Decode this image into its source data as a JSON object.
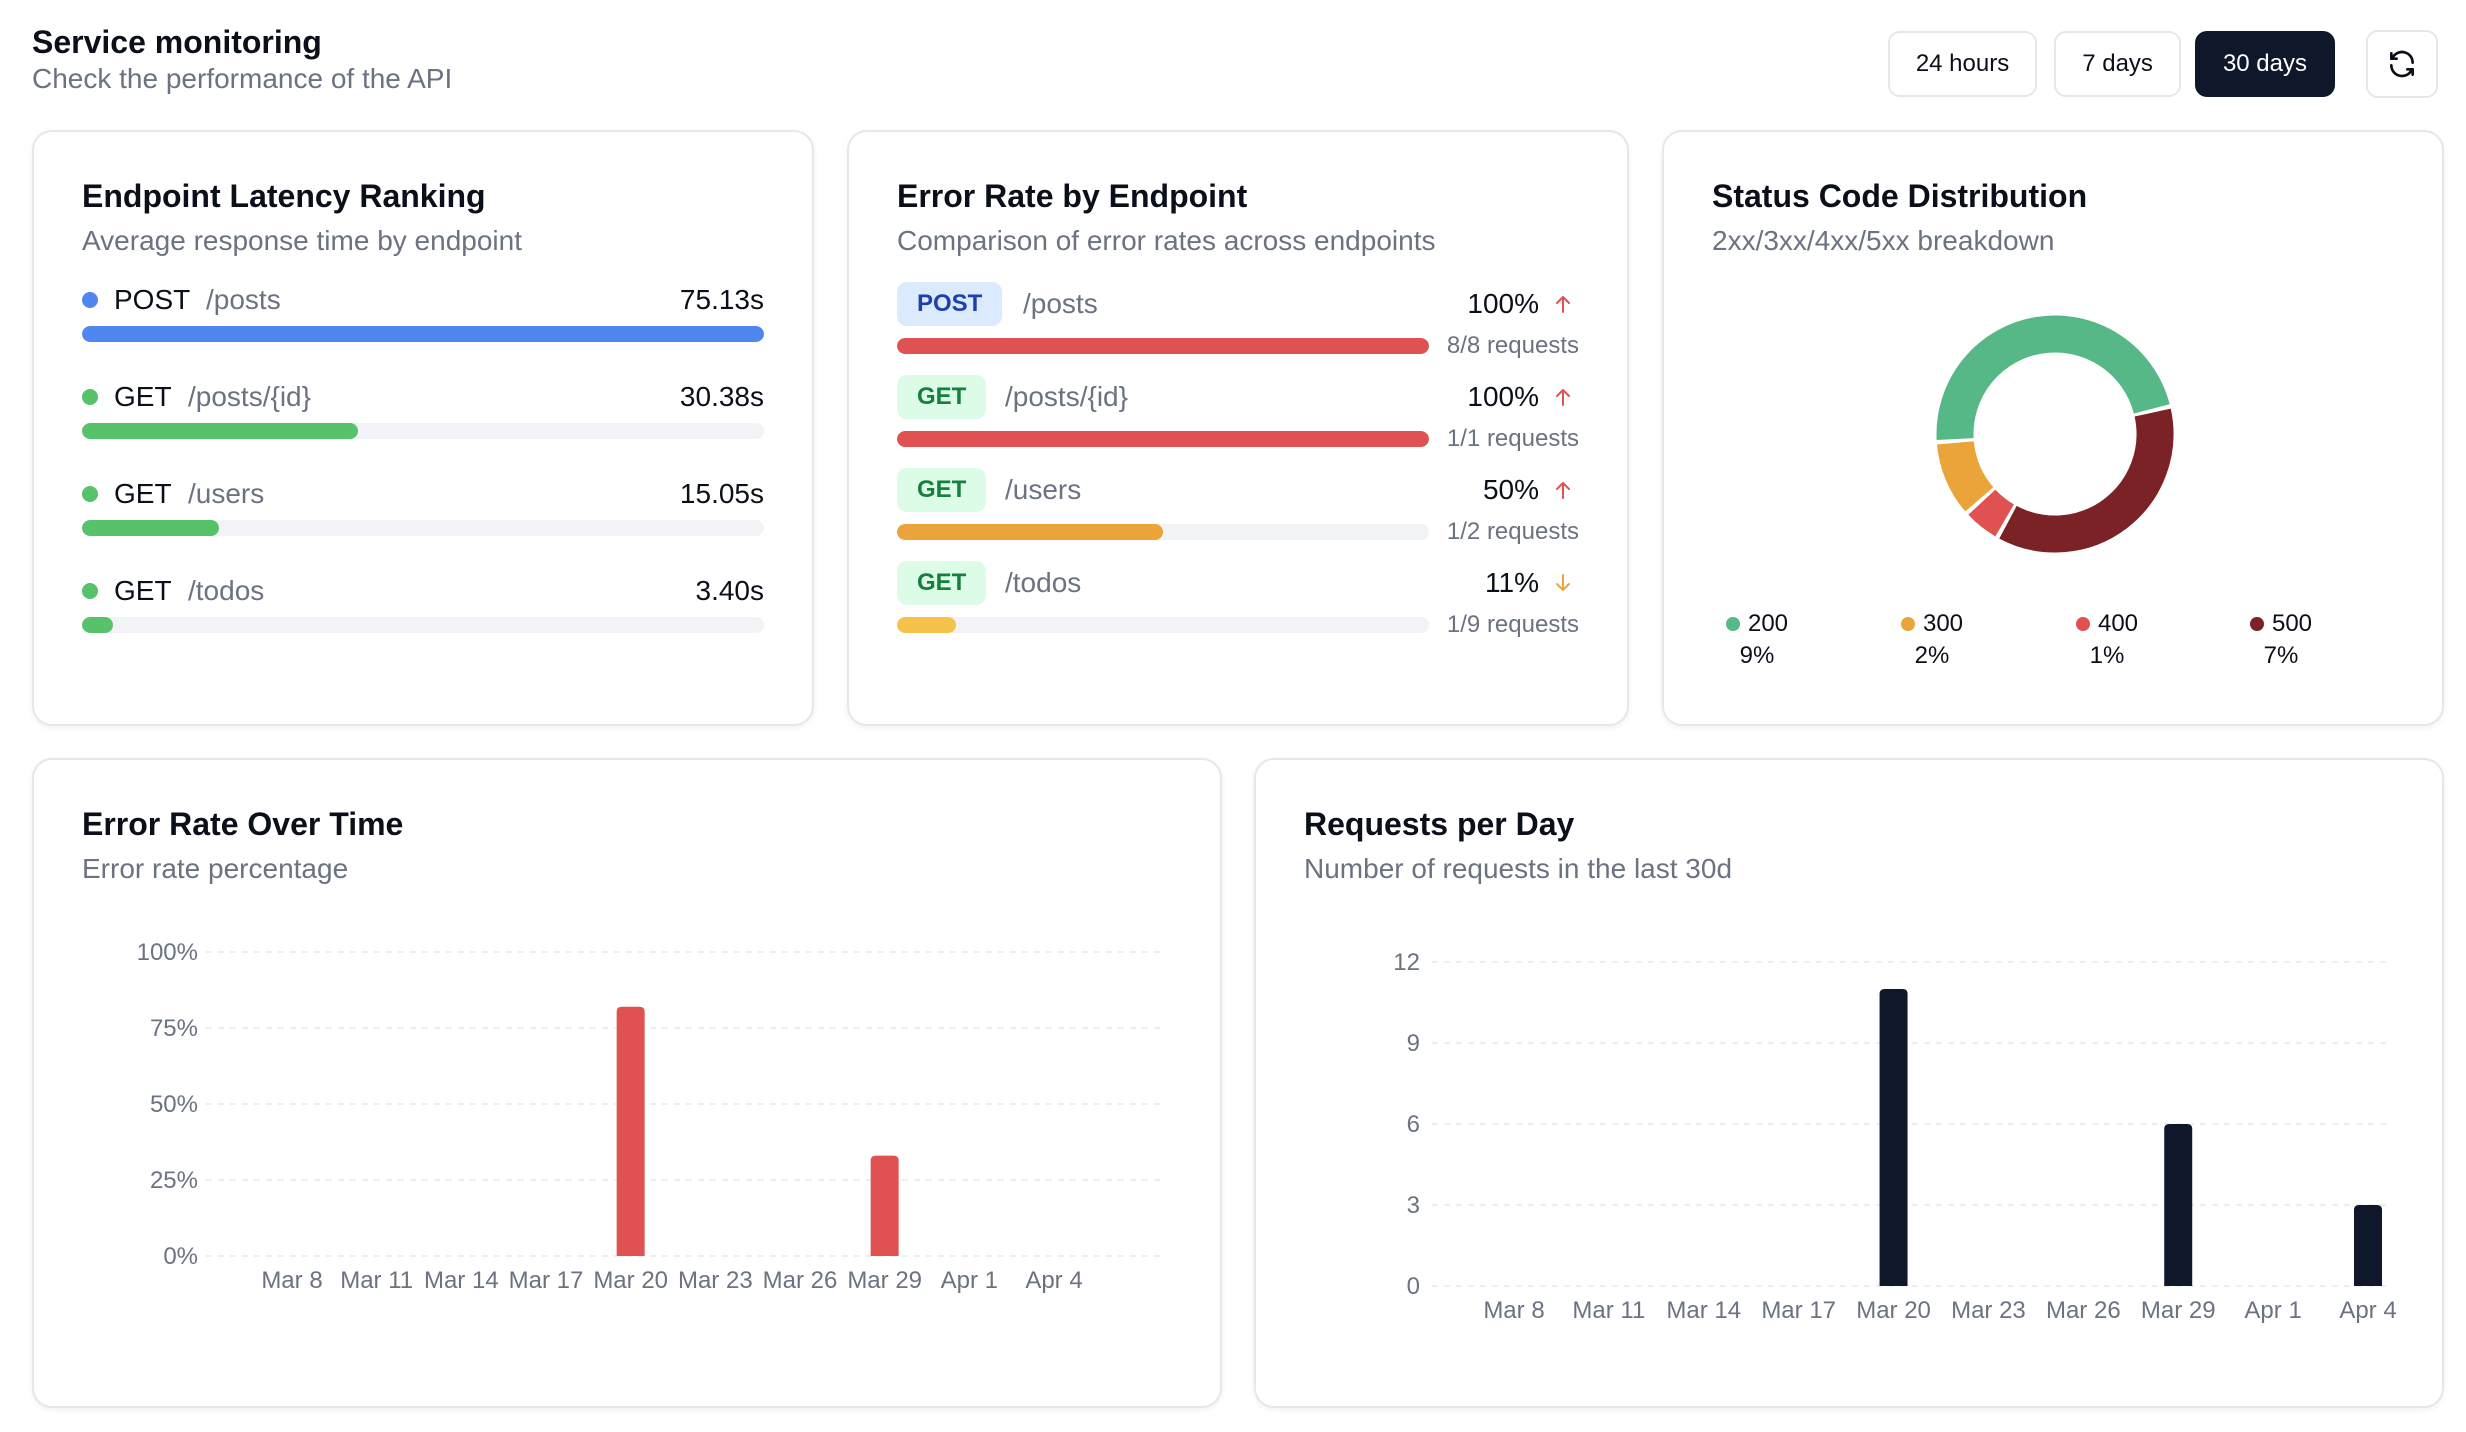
{
  "header": {
    "title": "Service monitoring",
    "subtitle": "Check the performance of the API",
    "ranges": [
      "24 hours",
      "7 days",
      "30 days"
    ],
    "active_range": "30 days"
  },
  "latency_card": {
    "title": "Endpoint Latency Ranking",
    "subtitle": "Average response time by endpoint",
    "max_seconds": 75.13,
    "rows": [
      {
        "method": "POST",
        "path": "/posts",
        "value": "75.13s",
        "seconds": 75.13,
        "color": "#4f86f0"
      },
      {
        "method": "GET",
        "path": "/posts/{id}",
        "value": "30.38s",
        "seconds": 30.38,
        "color": "#56c26c"
      },
      {
        "method": "GET",
        "path": "/users",
        "value": "15.05s",
        "seconds": 15.05,
        "color": "#56c26c"
      },
      {
        "method": "GET",
        "path": "/todos",
        "value": "3.40s",
        "seconds": 3.4,
        "color": "#56c26c"
      }
    ]
  },
  "error_card": {
    "title": "Error Rate by Endpoint",
    "subtitle": "Comparison of error rates across endpoints",
    "rows": [
      {
        "method": "POST",
        "path": "/posts",
        "rate_label": "100%",
        "rate": 100,
        "requests": "8/8 requests",
        "trend": "up",
        "color": "#e05252"
      },
      {
        "method": "GET",
        "path": "/posts/{id}",
        "rate_label": "100%",
        "rate": 100,
        "requests": "1/1 requests",
        "trend": "up",
        "color": "#e05252"
      },
      {
        "method": "GET",
        "path": "/users",
        "rate_label": "50%",
        "rate": 50,
        "requests": "1/2 requests",
        "trend": "up",
        "color": "#eba43a"
      },
      {
        "method": "GET",
        "path": "/todos",
        "rate_label": "11%",
        "rate": 11,
        "requests": "1/9 requests",
        "trend": "down",
        "color": "#f6c34a"
      }
    ]
  },
  "status_card": {
    "title": "Status Code Distribution",
    "subtitle": "2xx/3xx/4xx/5xx breakdown",
    "legend": [
      {
        "code": "200",
        "pct": "9%",
        "color": "#56b886"
      },
      {
        "code": "300",
        "pct": "2%",
        "color": "#eba43a"
      },
      {
        "code": "400",
        "pct": "1%",
        "color": "#e05252"
      },
      {
        "code": "500",
        "pct": "7%",
        "color": "#7a2226"
      }
    ]
  },
  "chart_data": [
    {
      "type": "pie",
      "title": "Status Code Distribution",
      "categories": [
        "200",
        "300",
        "400",
        "500"
      ],
      "values": [
        9,
        2,
        1,
        7
      ],
      "colors": [
        "#56b886",
        "#eba43a",
        "#e05252",
        "#7a2226"
      ]
    },
    {
      "type": "bar",
      "title": "Error Rate Over Time",
      "subtitle": "Error rate percentage",
      "x_labels": [
        "Mar 8",
        "Mar 11",
        "Mar 14",
        "Mar 17",
        "Mar 20",
        "Mar 23",
        "Mar 26",
        "Mar 29",
        "Apr 1",
        "Apr 4"
      ],
      "y_ticks": [
        "0%",
        "25%",
        "50%",
        "75%",
        "100%"
      ],
      "ylim": [
        0,
        100
      ],
      "bars": [
        {
          "x": "Mar 20",
          "value": 82
        },
        {
          "x": "Mar 29",
          "value": 33
        }
      ],
      "color": "#e05252"
    },
    {
      "type": "bar",
      "title": "Requests per Day",
      "subtitle": "Number of requests in the last 30d",
      "x_labels": [
        "Mar 8",
        "Mar 11",
        "Mar 14",
        "Mar 17",
        "Mar 20",
        "Mar 23",
        "Mar 26",
        "Mar 29",
        "Apr 1",
        "Apr 4"
      ],
      "y_ticks": [
        "0",
        "3",
        "6",
        "9",
        "12"
      ],
      "ylim": [
        0,
        12
      ],
      "bars": [
        {
          "x": "Mar 20",
          "value": 11
        },
        {
          "x": "Mar 29",
          "value": 6
        },
        {
          "x": "Apr 4",
          "value": 3
        }
      ],
      "color": "#0f172a"
    }
  ]
}
